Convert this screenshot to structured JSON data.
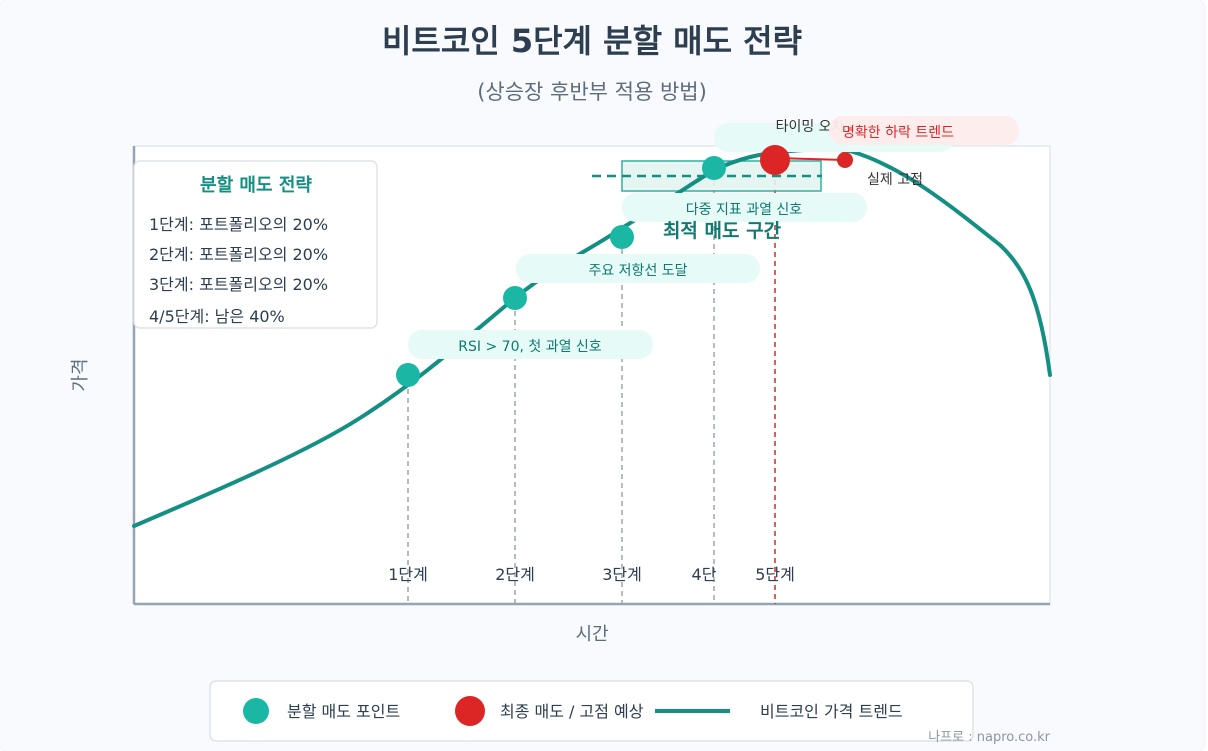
{
  "title": "비트코인 5단계 분할 매도 전략",
  "subtitle": "(상승장 후반부 적용 방법)",
  "axes": {
    "x_label": "시간",
    "y_label": "가격"
  },
  "strategy_box": {
    "heading": "분할 매도 전략",
    "lines": [
      "1단계: 포트폴리오의 20%",
      "2단계: 포트폴리오의 20%",
      "3단계: 포트폴리오의 20%",
      "4/5단계: 남은 40%"
    ]
  },
  "stages": [
    "1단계",
    "2단계",
    "3단계",
    "4단",
    "5단계"
  ],
  "callouts": {
    "rsi": "RSI > 70, 첫 과열 신호",
    "resistance": "주요 저항선 도달",
    "multi": "다중 지표 과열 신호",
    "timing": "타이밍 오차",
    "downtrend": "명확한 하락 트렌드",
    "actual_peak": "실제 고점"
  },
  "optimal_zone_label": "최적 매도 구간",
  "legend": {
    "split_point": "분할 매도 포인트",
    "final_sell": "최종 매도 / 고점 예상",
    "trend": "비트코인 가격 트렌드"
  },
  "source": "나프로 : napro.co.kr",
  "colors": {
    "teal": "#1aa899",
    "trend": "#148f84",
    "red": "#dc2626",
    "dark": "#2c3e50"
  }
}
